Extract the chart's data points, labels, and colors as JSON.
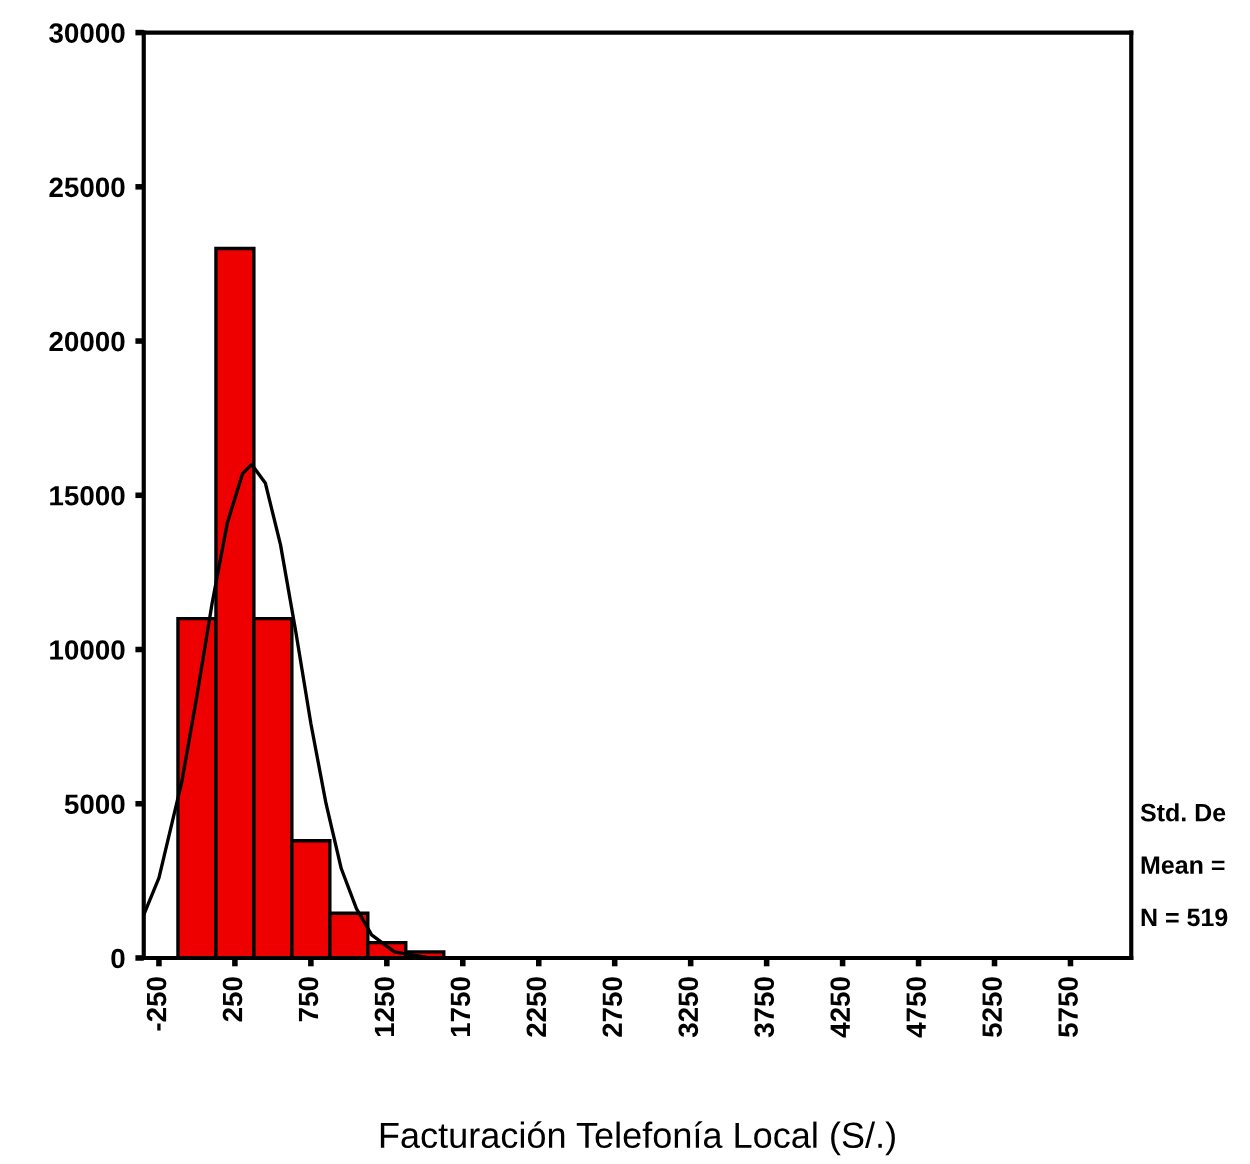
{
  "chart_data": {
    "type": "histogram",
    "xlabel": "Facturación Telefonía Local (S/.)",
    "bins": [
      -125,
      125,
      375,
      625,
      875,
      1125,
      1375,
      1625,
      1875,
      2125,
      2375
    ],
    "values": [
      11000,
      23000,
      11000,
      3800,
      1450,
      500,
      200,
      null,
      null,
      null
    ],
    "color": "#ee0000",
    "series": [
      {
        "type": "line",
        "color": "#000000",
        "x": [
          -350,
          -250,
          -100,
          0,
          100,
          200,
          300,
          360,
          450,
          550,
          650,
          750,
          850,
          950,
          1050,
          1150,
          1300,
          1500
        ],
        "values": [
          1400,
          2600,
          5700,
          8500,
          11500,
          14100,
          15700,
          16000,
          15400,
          13400,
          10600,
          7600,
          5000,
          2900,
          1600,
          750,
          200,
          30
        ]
      }
    ],
    "xlim": [
      -350,
      6150
    ],
    "xticks": [
      -250,
      250,
      750,
      1250,
      1750,
      2250,
      2750,
      3250,
      3750,
      4250,
      4750,
      5250,
      5750
    ],
    "ylim": [
      0,
      30000
    ],
    "yticks": [
      0,
      5000,
      10000,
      15000,
      20000,
      25000,
      30000
    ],
    "annotations": [
      "Std. De",
      "Mean =",
      "N = 519"
    ],
    "grid": false,
    "legend": false
  }
}
